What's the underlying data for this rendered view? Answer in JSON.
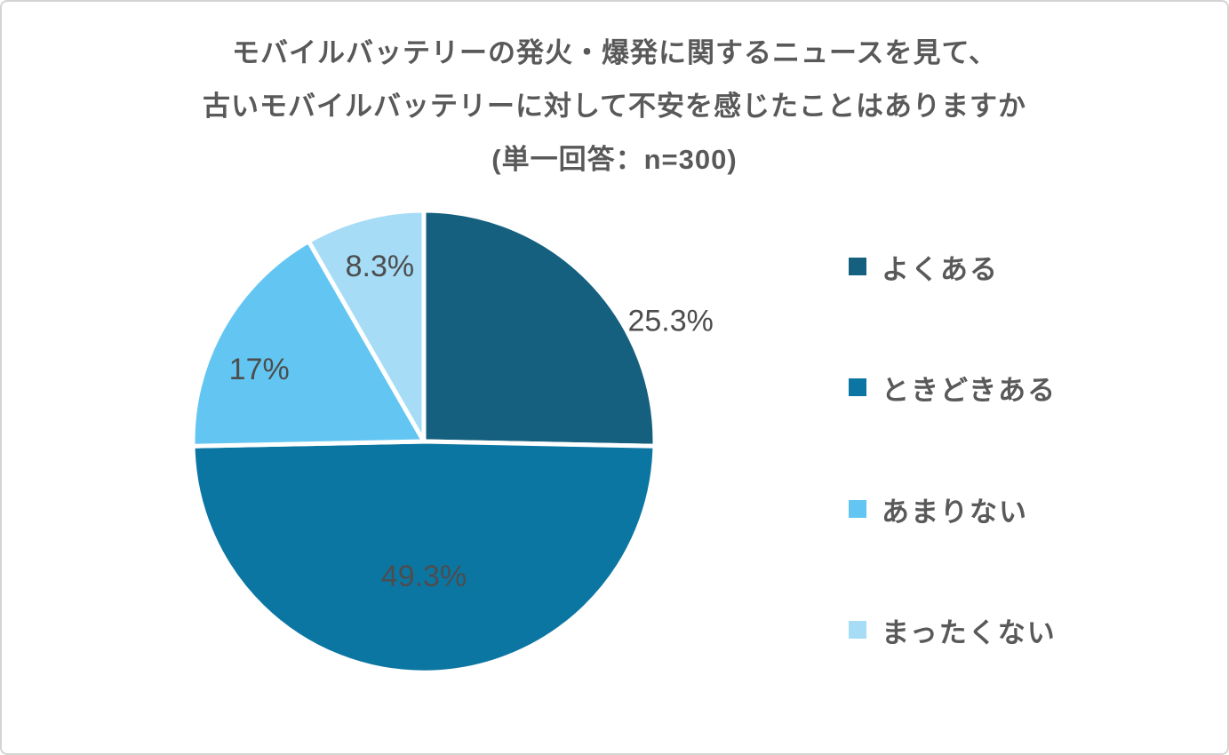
{
  "page": {
    "background": "#ffffff",
    "border_color": "#d4d4d4",
    "text_color": "#595959"
  },
  "chart_data": {
    "type": "pie",
    "title_lines": [
      "モバイルバッテリーの発火・爆発に関するニュースを見て、",
      "古いモバイルバッテリーに対して不安を感じたことはありますか",
      "(単一回答：n=300)"
    ],
    "sample_size": 300,
    "start_angle_deg": 0,
    "direction": "clockwise",
    "legend_position": "right",
    "grid": false,
    "label_color": "#4D4D4D",
    "divider_color": "#FFFFFF",
    "slices": [
      {
        "label": "よくある",
        "value_pct": 25.3,
        "display": "25.3%",
        "color": "#16607F"
      },
      {
        "label": "ときどきある",
        "value_pct": 49.3,
        "display": "49.3%",
        "color": "#0C76A3"
      },
      {
        "label": "あまりない",
        "value_pct": 17,
        "display": "17%",
        "color": "#63C6F2"
      },
      {
        "label": "まったくない",
        "value_pct": 8.3,
        "display": "8.3%",
        "color": "#A6DCF6"
      }
    ]
  }
}
